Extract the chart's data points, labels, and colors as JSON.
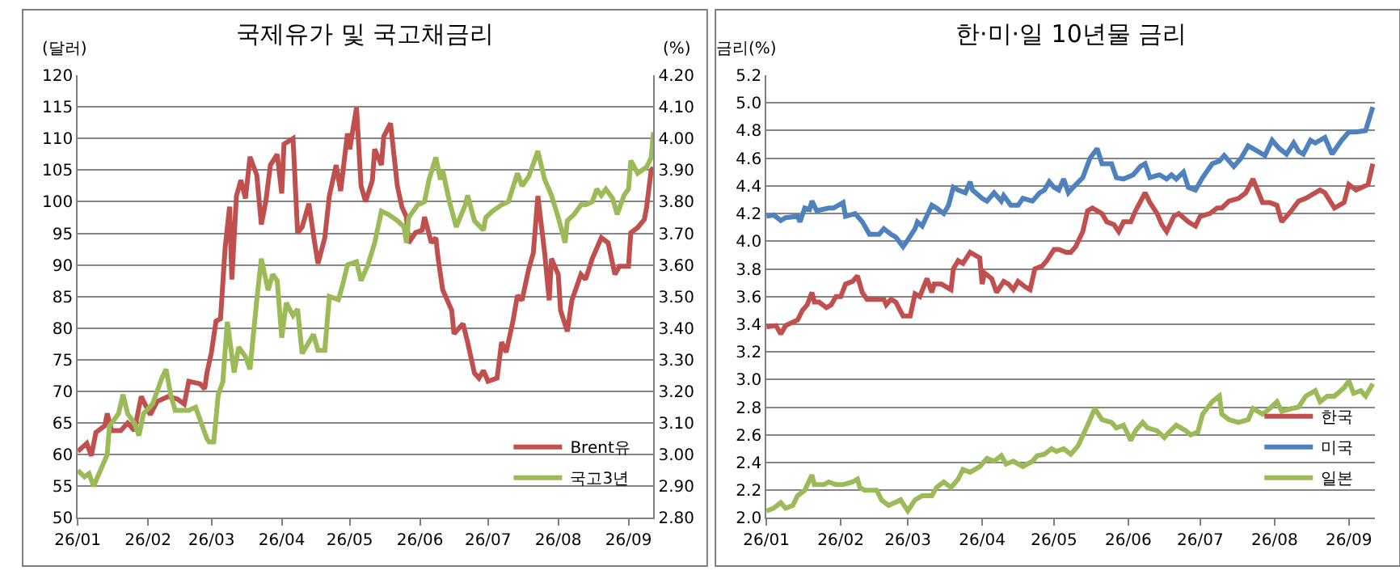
{
  "chart_data": [
    {
      "type": "line",
      "title": "국제유가 및 국고채금리",
      "ylabel": "(달러)",
      "y2label": "(%)",
      "xlim": [
        "--01-01",
        "--09-12"
      ],
      "xticks": [
        {
          "value": "--01-01",
          "label": "26/01"
        },
        {
          "value": "--02-01",
          "label": "26/02"
        },
        {
          "value": "--03-01",
          "label": "26/03"
        },
        {
          "value": "--04-01",
          "label": "26/04"
        },
        {
          "value": "--05-01",
          "label": "26/05"
        },
        {
          "value": "--06-01",
          "label": "26/06"
        },
        {
          "value": "--07-01",
          "label": "26/07"
        },
        {
          "value": "--08-01",
          "label": "26/08"
        },
        {
          "value": "--09-01",
          "label": "26/09"
        }
      ],
      "ylim": [
        50,
        120
      ],
      "yticks": [
        50,
        55,
        60,
        65,
        70,
        75,
        80,
        85,
        90,
        95,
        100,
        105,
        110,
        115,
        120
      ],
      "y2lim": [
        2.8,
        4.2
      ],
      "y2ticks": [
        {
          "value": 2.8,
          "label": "2.80"
        },
        {
          "value": 2.9,
          "label": "2.90"
        },
        {
          "value": 3.0,
          "label": "3.00"
        },
        {
          "value": 3.1,
          "label": "3.10"
        },
        {
          "value": 3.2,
          "label": "3.20"
        },
        {
          "value": 3.3,
          "label": "3.30"
        },
        {
          "value": 3.4,
          "label": "3.40"
        },
        {
          "value": 3.5,
          "label": "3.50"
        },
        {
          "value": 3.6,
          "label": "3.60"
        },
        {
          "value": 3.7,
          "label": "3.70"
        },
        {
          "value": 3.8,
          "label": "3.80"
        },
        {
          "value": 3.9,
          "label": "3.90"
        },
        {
          "value": 4.0,
          "label": "4.00"
        },
        {
          "value": 4.1,
          "label": "4.10"
        },
        {
          "value": 4.2,
          "label": "4.20"
        }
      ],
      "grid": "y",
      "legend": "bottom right",
      "series": [
        {
          "name": "Brent유",
          "color": "#c0504d",
          "x": [
            "--01-01",
            "--01-05",
            "--01-07",
            "--01-09",
            "--01-13",
            "--01-14",
            "--01-16",
            "--01-20",
            "--01-23",
            "--01-26",
            "--01-29",
            "--02-02",
            "--02-05",
            "--02-10",
            "--02-14",
            "--02-17",
            "--02-19",
            "--02-24",
            "--02-26",
            "--02-27",
            "--03-01",
            "--03-03",
            "--03-05",
            "--03-07",
            "--03-09",
            "--03-10",
            "--03-12",
            "--03-14",
            "--03-16",
            "--03-18",
            "--03-21",
            "--03-23",
            "--03-25",
            "--03-27",
            "--03-30",
            "--04-01",
            "--04-02",
            "--04-06",
            "--04-08",
            "--04-10",
            "--04-13",
            "--04-15",
            "--04-17",
            "--04-20",
            "--04-22",
            "--04-25",
            "--04-27",
            "--04-30",
            "--05-01",
            "--05-04",
            "--05-06",
            "--05-08",
            "--05-11",
            "--05-12",
            "--05-15",
            "--05-16",
            "--05-19",
            "--05-20",
            "--05-22",
            "--05-24",
            "--05-26",
            "--05-27",
            "--05-30",
            "--06-02",
            "--06-03",
            "--06-06",
            "--06-08",
            "--06-09",
            "--06-11",
            "--06-15",
            "--06-16",
            "--06-20",
            "--06-22",
            "--06-25",
            "--06-27",
            "--06-29",
            "--07-01",
            "--07-05",
            "--07-07",
            "--07-09",
            "--07-12",
            "--07-14",
            "--07-16",
            "--07-19",
            "--07-21",
            "--07-23",
            "--07-26",
            "--07-28",
            "--07-29",
            "--08-01",
            "--08-02",
            "--08-05",
            "--08-07",
            "--08-11",
            "--08-13",
            "--08-16",
            "--08-20",
            "--08-23",
            "--08-26",
            "--08-28",
            "--09-01",
            "--09-02",
            "--09-05",
            "--09-08",
            "--09-09",
            "--09-11",
            "--09-12"
          ],
          "values": [
            60.5,
            61.8,
            59.8,
            63.5,
            64.6,
            66.5,
            63.8,
            63.8,
            65,
            63.8,
            69.2,
            66.3,
            68.4,
            69.2,
            68.8,
            68,
            71.6,
            71.2,
            70.4,
            72.9,
            76.2,
            81.1,
            81.5,
            92.6,
            99.2,
            87.7,
            100.9,
            103.4,
            100.5,
            107.1,
            104.2,
            96.4,
            100.1,
            105.8,
            107.5,
            101.3,
            109.1,
            110,
            95.1,
            96,
            99.7,
            94.7,
            90.2,
            94.3,
            100.9,
            105.8,
            101.7,
            110.8,
            108.3,
            114.9,
            102.5,
            100,
            103.4,
            108.3,
            105.8,
            110.3,
            112.4,
            109.1,
            102.5,
            99.2,
            97.6,
            93.5,
            95.1,
            95.5,
            97.6,
            93.5,
            94.3,
            91,
            86.1,
            82.8,
            79.1,
            80.7,
            77.8,
            72.9,
            72.1,
            73.3,
            71.6,
            72.1,
            77.8,
            76.2,
            81.1,
            85.2,
            84.4,
            89.4,
            91.9,
            100.9,
            91.9,
            84.4,
            91,
            88.5,
            82.8,
            79.5,
            84.4,
            88.5,
            87.7,
            91,
            94.3,
            93.5,
            88.5,
            89.8,
            89.8,
            95.1,
            95.9,
            97.2,
            99.2,
            105,
            105.4
          ]
        },
        {
          "name": "국고3년",
          "color": "#9bbb59",
          "axis": "y2",
          "x": [
            "--01-01",
            "--01-04",
            "--01-06",
            "--01-08",
            "--01-11",
            "--01-14",
            "--01-15",
            "--01-19",
            "--01-21",
            "--01-23",
            "--01-26",
            "--01-28",
            "--01-30",
            "--02-03",
            "--02-05",
            "--02-07",
            "--02-09",
            "--02-11",
            "--02-13",
            "--02-19",
            "--02-22",
            "--02-27",
            "--02-28",
            "--03-02",
            "--03-04",
            "--03-06",
            "--03-08",
            "--03-11",
            "--03-13",
            "--03-16",
            "--03-18",
            "--03-21",
            "--03-23",
            "--03-26",
            "--03-28",
            "--03-30",
            "--04-01",
            "--04-03",
            "--04-06",
            "--04-08",
            "--04-10",
            "--04-15",
            "--04-17",
            "--04-20",
            "--04-22",
            "--04-26",
            "--04-28",
            "--04-30",
            "--05-04",
            "--05-06",
            "--05-09",
            "--05-12",
            "--05-15",
            "--05-18",
            "--05-22",
            "--05-25",
            "--05-26",
            "--05-27",
            "--05-31",
            "--06-03",
            "--06-05",
            "--06-08",
            "--06-10",
            "--06-11",
            "--06-14",
            "--06-17",
            "--06-21",
            "--06-22",
            "--06-25",
            "--06-29",
            "--06-30",
            "--07-03",
            "--07-07",
            "--07-10",
            "--07-14",
            "--07-16",
            "--07-19",
            "--07-23",
            "--07-26",
            "--07-29",
            "--08-01",
            "--08-04",
            "--08-05",
            "--08-08",
            "--08-11",
            "--08-13",
            "--08-16",
            "--08-18",
            "--08-20",
            "--08-22",
            "--08-25",
            "--08-27",
            "--08-30",
            "--09-01",
            "--09-02",
            "--09-05",
            "--09-09",
            "--09-11",
            "--09-12"
          ],
          "values": [
            2.95,
            2.93,
            2.94,
            2.9,
            2.95,
            3.0,
            3.09,
            3.13,
            3.19,
            3.13,
            3.1,
            3.06,
            3.13,
            3.16,
            3.2,
            3.24,
            3.27,
            3.19,
            3.14,
            3.14,
            3.15,
            3.05,
            3.04,
            3.04,
            3.19,
            3.23,
            3.42,
            3.26,
            3.34,
            3.31,
            3.27,
            3.49,
            3.62,
            3.52,
            3.57,
            3.55,
            3.37,
            3.48,
            3.44,
            3.46,
            3.32,
            3.38,
            3.33,
            3.33,
            3.5,
            3.49,
            3.54,
            3.6,
            3.61,
            3.55,
            3.6,
            3.67,
            3.77,
            3.76,
            3.74,
            3.72,
            3.67,
            3.75,
            3.79,
            3.8,
            3.87,
            3.94,
            3.87,
            3.9,
            3.8,
            3.72,
            3.79,
            3.82,
            3.74,
            3.71,
            3.75,
            3.77,
            3.79,
            3.8,
            3.89,
            3.85,
            3.88,
            3.96,
            3.87,
            3.82,
            3.75,
            3.67,
            3.74,
            3.76,
            3.79,
            3.79,
            3.8,
            3.84,
            3.82,
            3.84,
            3.81,
            3.76,
            3.82,
            3.84,
            3.93,
            3.89,
            3.91,
            3.94,
            4.02
          ]
        }
      ]
    },
    {
      "type": "line",
      "title": "한·미·일 10년물 금리",
      "ylabel": "금리(%)",
      "xlim": [
        "--01-01",
        "--09-12"
      ],
      "xticks": [
        {
          "value": "--01-01",
          "label": "26/01"
        },
        {
          "value": "--02-01",
          "label": "26/02"
        },
        {
          "value": "--03-01",
          "label": "26/03"
        },
        {
          "value": "--04-01",
          "label": "26/04"
        },
        {
          "value": "--05-01",
          "label": "26/05"
        },
        {
          "value": "--06-01",
          "label": "26/06"
        },
        {
          "value": "--07-01",
          "label": "26/07"
        },
        {
          "value": "--08-01",
          "label": "26/08"
        },
        {
          "value": "--09-01",
          "label": "26/09"
        }
      ],
      "ylim": [
        2.0,
        5.2
      ],
      "yticks": [
        {
          "value": 2.0,
          "label": "2.0"
        },
        {
          "value": 2.2,
          "label": "2.2"
        },
        {
          "value": 2.4,
          "label": "2.4"
        },
        {
          "value": 2.6,
          "label": "2.6"
        },
        {
          "value": 2.8,
          "label": "2.8"
        },
        {
          "value": 3.0,
          "label": "3.0"
        },
        {
          "value": 3.2,
          "label": "3.2"
        },
        {
          "value": 3.4,
          "label": "3.4"
        },
        {
          "value": 3.6,
          "label": "3.6"
        },
        {
          "value": 3.8,
          "label": "3.8"
        },
        {
          "value": 4.0,
          "label": "4.0"
        },
        {
          "value": 4.2,
          "label": "4.2"
        },
        {
          "value": 4.4,
          "label": "4.4"
        },
        {
          "value": 4.6,
          "label": "4.6"
        },
        {
          "value": 4.8,
          "label": "4.8"
        },
        {
          "value": 5.0,
          "label": "5.0"
        },
        {
          "value": 5.2,
          "label": "5.2"
        }
      ],
      "grid": "y",
      "legend": "bottom right",
      "series": [
        {
          "name": "한국",
          "color": "#c0504d",
          "x": [
            "--01-01",
            "--01-05",
            "--01-07",
            "--01-09",
            "--01-14",
            "--01-16",
            "--01-18",
            "--01-20",
            "--01-21",
            "--01-23",
            "--01-26",
            "--01-28",
            "--01-30",
            "--02-01",
            "--02-03",
            "--02-06",
            "--02-08",
            "--02-10",
            "--02-12",
            "--02-16",
            "--02-19",
            "--02-20",
            "--02-22",
            "--02-24",
            "--02-27",
            "--03-02",
            "--03-04",
            "--03-06",
            "--03-09",
            "--03-11",
            "--03-12",
            "--03-15",
            "--03-19",
            "--03-20",
            "--03-22",
            "--03-24",
            "--03-27",
            "--03-31",
            "--04-01",
            "--04-02",
            "--04-05",
            "--04-07",
            "--04-10",
            "--04-12",
            "--04-14",
            "--04-16",
            "--04-19",
            "--04-21",
            "--04-23",
            "--04-26",
            "--04-28",
            "--05-01",
            "--05-03",
            "--05-06",
            "--05-08",
            "--05-10",
            "--05-13",
            "--05-15",
            "--05-17",
            "--05-21",
            "--05-23",
            "--05-26",
            "--05-28",
            "--05-30",
            "--06-02",
            "--06-04",
            "--06-08",
            "--06-10",
            "--06-13",
            "--06-15",
            "--06-17",
            "--06-20",
            "--06-22",
            "--06-26",
            "--06-29",
            "--07-01",
            "--07-05",
            "--07-08",
            "--07-10",
            "--07-13",
            "--07-17",
            "--07-20",
            "--07-23",
            "--07-27",
            "--07-30",
            "--08-02",
            "--08-04",
            "--08-08",
            "--08-11",
            "--08-14",
            "--08-18",
            "--08-20",
            "--08-22",
            "--08-26",
            "--08-30",
            "--09-01",
            "--09-04",
            "--09-09",
            "--09-11"
          ],
          "values": [
            3.38,
            3.39,
            3.33,
            3.39,
            3.43,
            3.5,
            3.54,
            3.63,
            3.56,
            3.56,
            3.52,
            3.54,
            3.6,
            3.6,
            3.69,
            3.71,
            3.75,
            3.63,
            3.58,
            3.58,
            3.58,
            3.54,
            3.58,
            3.56,
            3.46,
            3.46,
            3.62,
            3.6,
            3.73,
            3.63,
            3.69,
            3.69,
            3.65,
            3.8,
            3.86,
            3.84,
            3.92,
            3.88,
            3.69,
            3.77,
            3.73,
            3.63,
            3.71,
            3.69,
            3.65,
            3.71,
            3.67,
            3.65,
            3.8,
            3.82,
            3.86,
            3.94,
            3.94,
            3.92,
            3.92,
            3.96,
            4.07,
            4.22,
            4.24,
            4.2,
            4.14,
            4.12,
            4.07,
            4.14,
            4.14,
            4.22,
            4.35,
            4.28,
            4.2,
            4.12,
            4.07,
            4.18,
            4.2,
            4.14,
            4.11,
            4.18,
            4.2,
            4.24,
            4.24,
            4.29,
            4.31,
            4.35,
            4.45,
            4.28,
            4.28,
            4.26,
            4.14,
            4.22,
            4.29,
            4.31,
            4.35,
            4.37,
            4.35,
            4.24,
            4.28,
            4.41,
            4.37,
            4.41,
            4.56
          ]
        },
        {
          "name": "미국",
          "color": "#4f81bd",
          "x": [
            "--01-01",
            "--01-04",
            "--01-07",
            "--01-09",
            "--01-14",
            "--01-15",
            "--01-17",
            "--01-19",
            "--01-20",
            "--01-22",
            "--01-27",
            "--01-29",
            "--02-02",
            "--02-03",
            "--02-07",
            "--02-10",
            "--02-13",
            "--02-17",
            "--02-19",
            "--02-22",
            "--02-24",
            "--02-27",
            "--03-01",
            "--03-04",
            "--03-05",
            "--03-07",
            "--03-11",
            "--03-13",
            "--03-16",
            "--03-18",
            "--03-20",
            "--03-22",
            "--03-25",
            "--03-27",
            "--03-28",
            "--04-01",
            "--04-03",
            "--04-06",
            "--04-09",
            "--04-10",
            "--04-13",
            "--04-16",
            "--04-18",
            "--04-22",
            "--04-25",
            "--04-27",
            "--04-29",
            "--05-01",
            "--05-03",
            "--05-05",
            "--05-07",
            "--05-09",
            "--05-13",
            "--05-16",
            "--05-19",
            "--05-21",
            "--05-25",
            "--05-27",
            "--05-30",
            "--06-03",
            "--06-06",
            "--06-08",
            "--06-10",
            "--06-14",
            "--06-17",
            "--06-19",
            "--06-21",
            "--06-24",
            "--06-26",
            "--06-29",
            "--07-02",
            "--07-06",
            "--07-09",
            "--07-11",
            "--07-15",
            "--07-18",
            "--07-21",
            "--07-25",
            "--07-28",
            "--07-31",
            "--08-03",
            "--08-06",
            "--08-09",
            "--08-11",
            "--08-13",
            "--08-16",
            "--08-18",
            "--08-22",
            "--08-25",
            "--08-29",
            "--09-01",
            "--09-04",
            "--09-08",
            "--09-11"
          ],
          "values": [
            4.18,
            4.19,
            4.15,
            4.17,
            4.18,
            4.14,
            4.24,
            4.23,
            4.29,
            4.22,
            4.24,
            4.24,
            4.28,
            4.18,
            4.2,
            4.14,
            4.05,
            4.05,
            4.09,
            4.05,
            4.03,
            3.96,
            4.01,
            4.09,
            4.14,
            4.11,
            4.26,
            4.24,
            4.2,
            4.26,
            4.39,
            4.37,
            4.35,
            4.43,
            4.37,
            4.31,
            4.29,
            4.35,
            4.29,
            4.33,
            4.26,
            4.26,
            4.31,
            4.29,
            4.35,
            4.37,
            4.43,
            4.39,
            4.37,
            4.45,
            4.35,
            4.39,
            4.46,
            4.6,
            4.67,
            4.56,
            4.56,
            4.46,
            4.45,
            4.48,
            4.54,
            4.56,
            4.46,
            4.48,
            4.45,
            4.48,
            4.45,
            4.5,
            4.39,
            4.37,
            4.46,
            4.56,
            4.58,
            4.62,
            4.54,
            4.6,
            4.69,
            4.65,
            4.62,
            4.73,
            4.67,
            4.63,
            4.71,
            4.65,
            4.63,
            4.73,
            4.71,
            4.75,
            4.63,
            4.73,
            4.79,
            4.79,
            4.8,
            4.97
          ]
        },
        {
          "name": "일본",
          "color": "#9bbb59",
          "x": [
            "--01-01",
            "--01-04",
            "--01-07",
            "--01-09",
            "--01-12",
            "--01-14",
            "--01-17",
            "--01-20",
            "--01-21",
            "--01-25",
            "--01-27",
            "--01-30",
            "--02-02",
            "--02-06",
            "--02-08",
            "--02-09",
            "--02-11",
            "--02-16",
            "--02-18",
            "--02-21",
            "--02-26",
            "--03-01",
            "--03-04",
            "--03-07",
            "--03-11",
            "--03-13",
            "--03-16",
            "--03-19",
            "--03-22",
            "--03-24",
            "--03-27",
            "--03-31",
            "--04-01",
            "--04-03",
            "--04-06",
            "--04-09",
            "--04-11",
            "--04-14",
            "--04-18",
            "--04-22",
            "--04-24",
            "--04-27",
            "--04-30",
            "--05-02",
            "--05-05",
            "--05-08",
            "--05-11",
            "--05-15",
            "--05-18",
            "--05-21",
            "--05-25",
            "--05-27",
            "--05-30",
            "--06-02",
            "--06-04",
            "--06-07",
            "--06-09",
            "--06-13",
            "--06-16",
            "--06-18",
            "--06-21",
            "--06-25",
            "--06-27",
            "--06-30",
            "--07-02",
            "--07-06",
            "--07-09",
            "--07-10",
            "--07-13",
            "--07-17",
            "--07-21",
            "--07-23",
            "--07-27",
            "--07-30",
            "--08-02",
            "--08-04",
            "--08-08",
            "--08-11",
            "--08-14",
            "--08-18",
            "--08-20",
            "--08-23",
            "--08-26",
            "--08-30",
            "--09-01",
            "--09-03",
            "--09-06",
            "--09-08",
            "--09-11"
          ],
          "values": [
            2.05,
            2.07,
            2.11,
            2.07,
            2.09,
            2.16,
            2.2,
            2.31,
            2.24,
            2.24,
            2.26,
            2.24,
            2.24,
            2.26,
            2.28,
            2.22,
            2.2,
            2.2,
            2.13,
            2.09,
            2.13,
            2.05,
            2.13,
            2.16,
            2.16,
            2.22,
            2.26,
            2.22,
            2.28,
            2.35,
            2.33,
            2.37,
            2.39,
            2.43,
            2.41,
            2.45,
            2.39,
            2.41,
            2.37,
            2.41,
            2.45,
            2.46,
            2.5,
            2.48,
            2.5,
            2.46,
            2.52,
            2.67,
            2.79,
            2.71,
            2.69,
            2.65,
            2.67,
            2.56,
            2.63,
            2.69,
            2.65,
            2.63,
            2.58,
            2.62,
            2.67,
            2.63,
            2.6,
            2.62,
            2.75,
            2.84,
            2.88,
            2.75,
            2.71,
            2.69,
            2.71,
            2.79,
            2.75,
            2.79,
            2.84,
            2.77,
            2.79,
            2.8,
            2.88,
            2.92,
            2.84,
            2.88,
            2.88,
            2.94,
            2.99,
            2.9,
            2.92,
            2.88,
            2.97
          ]
        }
      ]
    }
  ]
}
